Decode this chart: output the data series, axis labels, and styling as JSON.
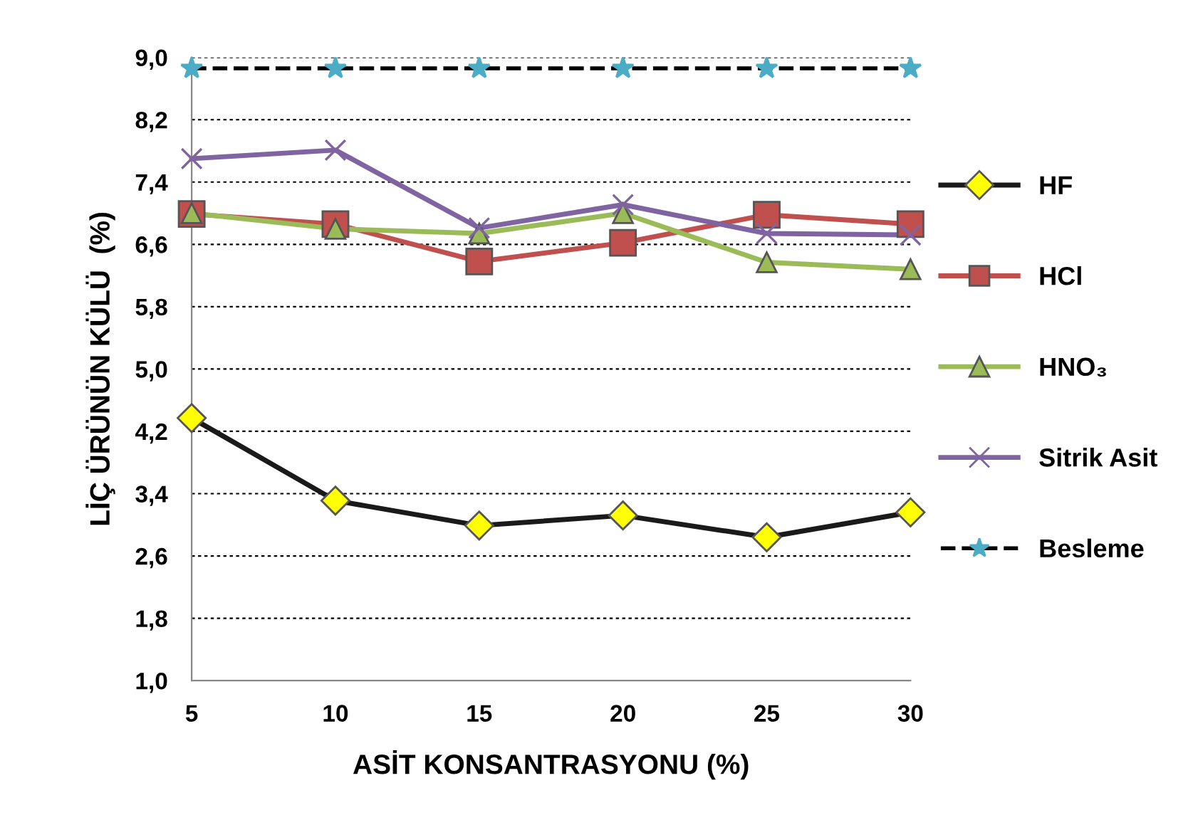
{
  "chart_data": {
    "type": "line",
    "x": [
      5,
      10,
      15,
      20,
      25,
      30
    ],
    "xlabel": "ASİT KONSANTRASYONU (%)",
    "ylabel": "LİÇ ÜRÜNÜN KÜLÜ  (%)",
    "xlim": [
      5,
      30
    ],
    "xticks": [
      5,
      10,
      15,
      20,
      25,
      30
    ],
    "ylim": [
      1.0,
      9.0
    ],
    "yticks": [
      {
        "value": 1.0,
        "label": "1,0"
      },
      {
        "value": 1.8,
        "label": "1,8"
      },
      {
        "value": 2.6,
        "label": "2,6"
      },
      {
        "value": 3.4,
        "label": "3,4"
      },
      {
        "value": 4.2,
        "label": "4,2"
      },
      {
        "value": 5.0,
        "label": "5,0"
      },
      {
        "value": 5.8,
        "label": "5,8"
      },
      {
        "value": 6.6,
        "label": "6,6"
      },
      {
        "value": 7.4,
        "label": "7,4"
      },
      {
        "value": 8.2,
        "label": "8,2"
      },
      {
        "value": 9.0,
        "label": "9,0"
      }
    ],
    "grid": "y",
    "legend": "right",
    "series": [
      {
        "name": "HF",
        "color": "#1a1a1a",
        "marker": "diamond",
        "colors": [
          "#ffff00",
          "#ffff00",
          "#ffff00",
          "#ffff00",
          "#ffff00",
          "#ffff00"
        ],
        "line_style": "solid",
        "values": [
          4.37,
          3.31,
          2.99,
          3.12,
          2.84,
          3.16
        ]
      },
      {
        "name": "HCl",
        "color": "#c0504d",
        "marker": "square",
        "line_style": "solid",
        "values": [
          6.99,
          6.86,
          6.38,
          6.62,
          6.98,
          6.86
        ]
      },
      {
        "name": "HNO₃",
        "color": "#9bbb59",
        "marker": "triangle",
        "line_style": "solid",
        "values": [
          7.0,
          6.8,
          6.74,
          7.0,
          6.37,
          6.28
        ]
      },
      {
        "name": "Sitrik Asit",
        "color": "#8064a2",
        "marker": "cross",
        "line_style": "solid",
        "values": [
          7.7,
          7.81,
          6.81,
          7.11,
          6.74,
          6.72
        ]
      },
      {
        "name": "Besleme",
        "color": "#000000",
        "marker": "star",
        "colors": [
          "#4bacc6",
          "#4bacc6",
          "#4bacc6",
          "#4bacc6",
          "#4bacc6",
          "#4bacc6"
        ],
        "line_style": "dashed",
        "values": [
          8.86,
          8.86,
          8.86,
          8.86,
          8.86,
          8.86
        ]
      }
    ]
  }
}
